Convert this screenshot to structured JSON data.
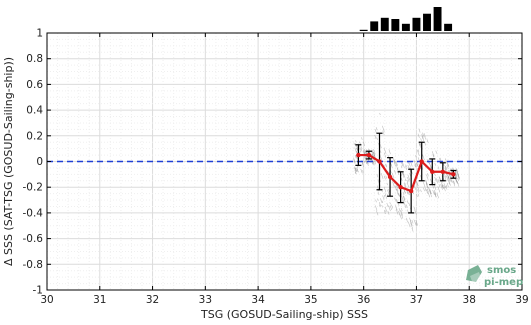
{
  "chart_data": {
    "type": "line",
    "xlabel": "TSG (GOSUD-Sailing-ship) SSS",
    "ylabel": "Δ SSS (SAT-TSG (GOSUD-Sailing-ship))",
    "xlim": [
      30,
      39
    ],
    "ylim": [
      -1,
      1
    ],
    "x_ticks": [
      30,
      31,
      32,
      33,
      34,
      35,
      36,
      37,
      38,
      39
    ],
    "y_ticks": [
      -1,
      -0.8,
      -0.6,
      -0.4,
      -0.2,
      0,
      0.2,
      0.4,
      0.6,
      0.8,
      1
    ],
    "grid": true,
    "zero_line": {
      "y": 0,
      "color": "#1f3fd6",
      "style": "dashed"
    },
    "series": [
      {
        "color": "#dd1c1c",
        "x": [
          35.9,
          36.1,
          36.3,
          36.5,
          36.7,
          36.9,
          37.1,
          37.3,
          37.5,
          37.7
        ],
        "y": [
          0.05,
          0.05,
          0.0,
          -0.12,
          -0.2,
          -0.23,
          0.0,
          -0.08,
          -0.08,
          -0.1
        ],
        "err": [
          0.08,
          0.03,
          0.22,
          0.15,
          0.12,
          0.17,
          0.15,
          0.1,
          0.07,
          0.03
        ]
      }
    ],
    "histogram": {
      "color": "#000000",
      "x": [
        36.0,
        36.2,
        36.4,
        36.6,
        36.8,
        37.0,
        37.2,
        37.4,
        37.6
      ],
      "counts": [
        0.05,
        0.4,
        0.55,
        0.5,
        0.3,
        0.55,
        0.72,
        1.0,
        0.3
      ]
    }
  },
  "logo": {
    "line1": "smos",
    "line2": "pi-mep",
    "color": "#6aa88a"
  }
}
